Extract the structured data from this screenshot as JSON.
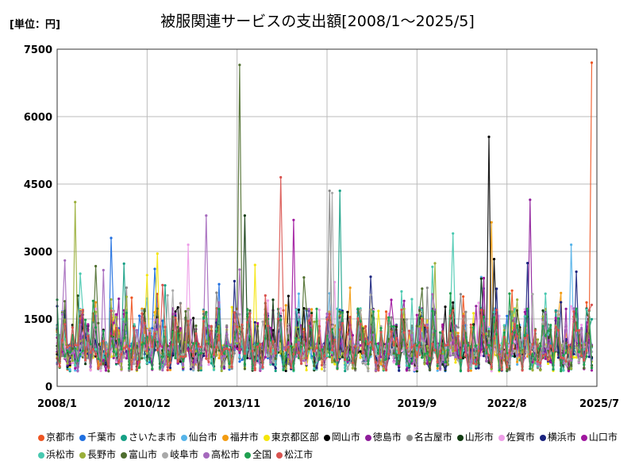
{
  "chart_data": {
    "type": "line",
    "unit_label": "[単位：円]",
    "title": "被服関連サービスの支出額[2008/1～2025/5]",
    "x_ticks": [
      "2008/1",
      "2010/12",
      "2013/11",
      "2016/10",
      "2019/9",
      "2022/8",
      "2025/7"
    ],
    "y_ticks": [
      "0",
      "1500",
      "3000",
      "4500",
      "6000",
      "7500"
    ],
    "ylim": [
      0,
      7500
    ],
    "xlim": [
      "2008/1",
      "2025/7"
    ],
    "grid": true,
    "legend_position": "bottom",
    "series": [
      {
        "name": "京都市",
        "color": "#ee5522",
        "peak": {
          "x": "2025/5",
          "y": 7200
        }
      },
      {
        "name": "千葉市",
        "color": "#1f6fe0",
        "peak": {
          "x": "2009/10",
          "y": 3300
        }
      },
      {
        "name": "さいたま市",
        "color": "#16a085",
        "peak": {
          "x": "2017/3",
          "y": 4350
        }
      },
      {
        "name": "仙台市",
        "color": "#56b4e9",
        "peak": {
          "x": "2024/9",
          "y": 3150
        }
      },
      {
        "name": "福井市",
        "color": "#f39c12",
        "peak": {
          "x": "2022/2",
          "y": 3650
        }
      },
      {
        "name": "東京都区部",
        "color": "#f5e60a",
        "peak": {
          "x": "2014/6",
          "y": 2700
        }
      },
      {
        "name": "岡山市",
        "color": "#000000",
        "peak": {
          "x": "2022/1",
          "y": 5550
        }
      },
      {
        "name": "徳島市",
        "color": "#8e1d9a",
        "peak": {
          "x": "2023/5",
          "y": 4150
        }
      },
      {
        "name": "名古屋市",
        "color": "#888888",
        "peak": {
          "x": "2016/11",
          "y": 4350
        }
      },
      {
        "name": "山形市",
        "color": "#123c12",
        "peak": {
          "x": "2014/2",
          "y": 3800
        }
      },
      {
        "name": "佐賀市",
        "color": "#ee9ee8",
        "peak": {
          "x": "2012/4",
          "y": 3150
        }
      },
      {
        "name": "横浜市",
        "color": "#1a237e",
        "peak": {
          "x": "2024/11",
          "y": 2550
        }
      },
      {
        "name": "山口市",
        "color": "#a0179f",
        "peak": {
          "x": "2015/9",
          "y": 3700
        }
      },
      {
        "name": "浜松市",
        "color": "#48c9b0",
        "peak": {
          "x": "2020/11",
          "y": 3400
        }
      },
      {
        "name": "長野市",
        "color": "#9aaf3a",
        "peak": {
          "x": "2008/8",
          "y": 4100
        }
      },
      {
        "name": "富山市",
        "color": "#4e6e2e",
        "peak": {
          "x": "2013/12",
          "y": 7150
        }
      },
      {
        "name": "岐阜市",
        "color": "#a9a9a9",
        "peak": {
          "x": "2016/12",
          "y": 4300
        }
      },
      {
        "name": "高松市",
        "color": "#a569bd",
        "peak": {
          "x": "2012/11",
          "y": 3800
        }
      },
      {
        "name": "全国",
        "color": "#1fa050",
        "peak": {
          "x": "2009/3",
          "y": 1900
        }
      },
      {
        "name": "松江市",
        "color": "#d9534f",
        "peak": {
          "x": "2015/4",
          "y": 4650
        }
      }
    ]
  }
}
